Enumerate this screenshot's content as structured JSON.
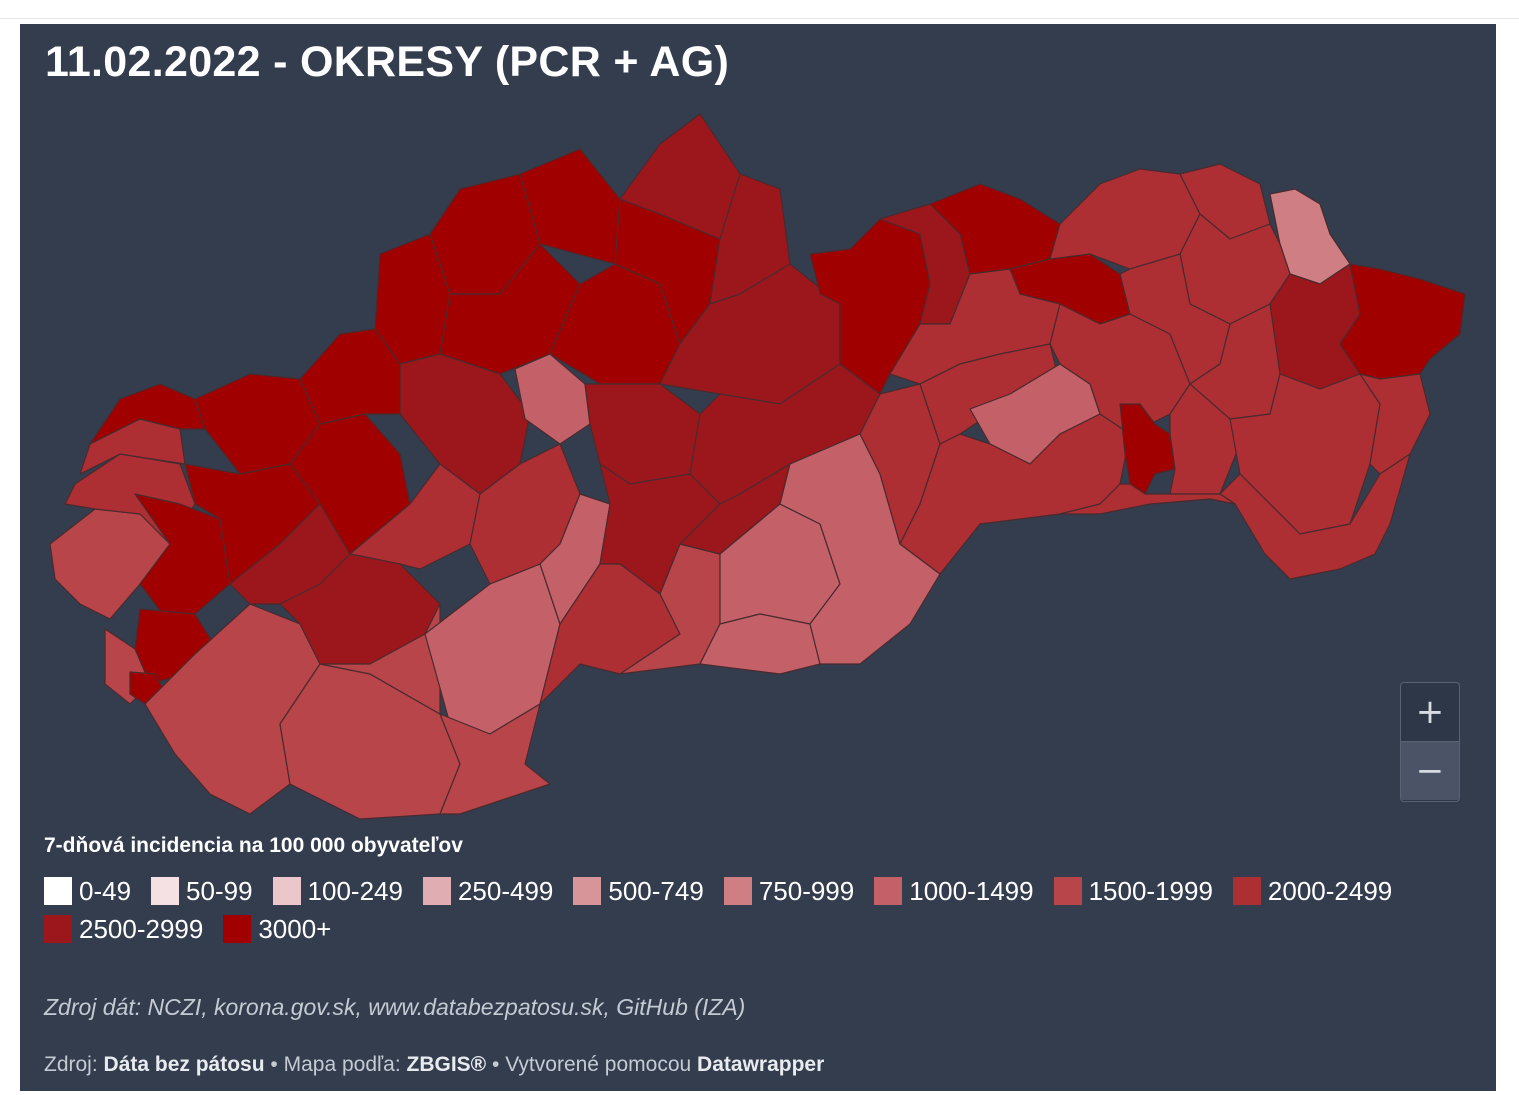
{
  "title": "11.02.2022 - OKRESY (PCR + AG)",
  "legend": {
    "title": "7-dňová incidencia na 100 000 obyvateľov",
    "items": [
      {
        "label": "0-49",
        "color": "#ffffff"
      },
      {
        "label": "50-99",
        "color": "#f5e1e3"
      },
      {
        "label": "100-249",
        "color": "#ebc6ca"
      },
      {
        "label": "250-499",
        "color": "#e0aeb2"
      },
      {
        "label": "500-749",
        "color": "#d89599"
      },
      {
        "label": "750-999",
        "color": "#cf7f84"
      },
      {
        "label": "1000-1499",
        "color": "#c46168"
      },
      {
        "label": "1500-1999",
        "color": "#b84549"
      },
      {
        "label": "2000-2499",
        "color": "#ad2f33"
      },
      {
        "label": "2500-2999",
        "color": "#9c171c"
      },
      {
        "label": "3000+",
        "color": "#a00000"
      }
    ]
  },
  "zoom": {
    "in_label": "+",
    "out_label": "−"
  },
  "source_note": "Zdroj dát: NCZI, korona.gov.sk, www.databezpatosu.sk, GitHub (IZA)",
  "footer": {
    "source_prefix": "Zdroj:",
    "source_name": "Dáta bez pátosu",
    "sep1": "•",
    "map_prefix": "Mapa podľa:",
    "map_name": "ZBGIS®",
    "sep2": "•",
    "made_prefix": "Vytvorené pomocou",
    "made_name": "Datawrapper"
  }
}
